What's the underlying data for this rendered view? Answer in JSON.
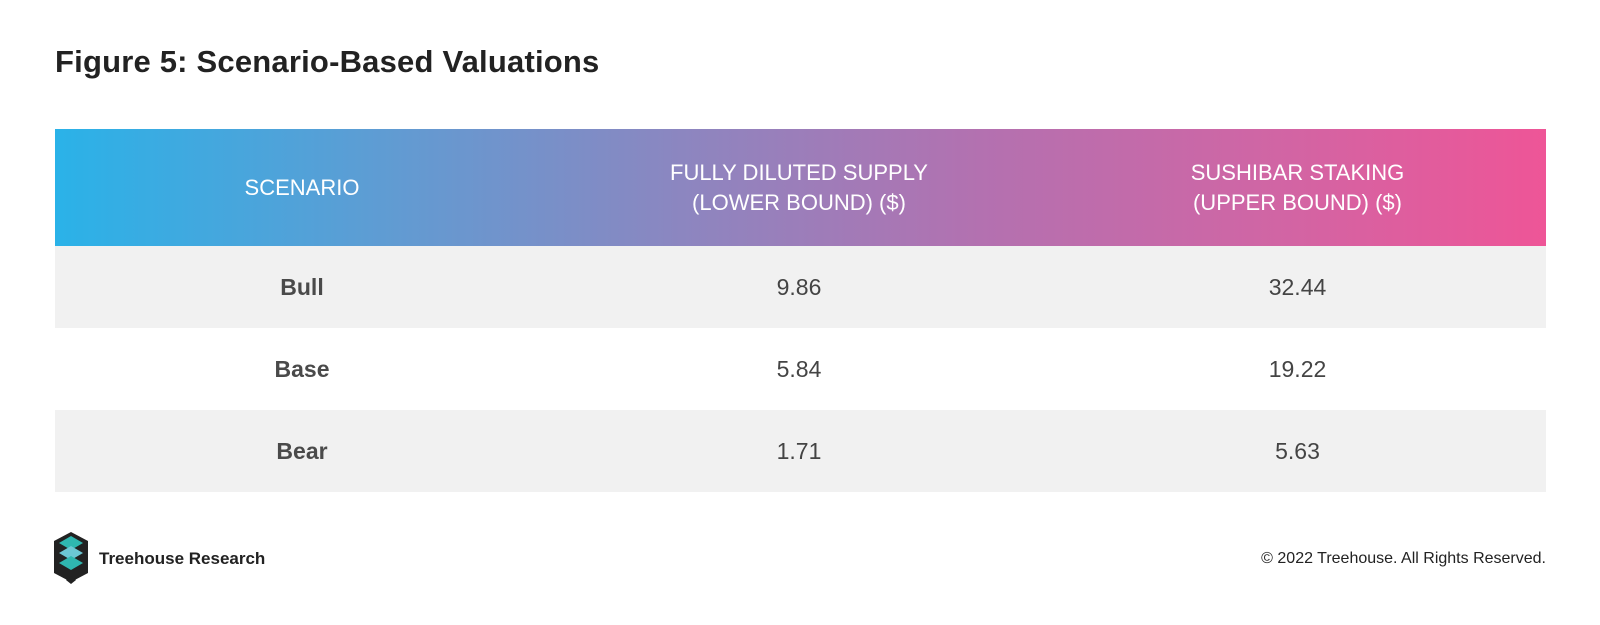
{
  "title": "Figure 5: Scenario-Based Valuations",
  "chart_data": {
    "type": "table",
    "columns": [
      "SCENARIO",
      "FULLY DILUTED SUPPLY\n(LOWER BOUND) ($)",
      "SUSHIBAR STAKING\n(UPPER BOUND) ($)"
    ],
    "rows": [
      [
        "Bull",
        "9.86",
        "32.44"
      ],
      [
        "Base",
        "5.84",
        "19.22"
      ],
      [
        "Bear",
        "1.71",
        "5.63"
      ]
    ],
    "header_gradient": [
      "#2ab2e8",
      "#ee5597"
    ]
  },
  "footer": {
    "brand": "Treehouse Research",
    "copyright": "© 2022 Treehouse. All Rights Reserved.",
    "logo_icon": "treehouse-logo-icon"
  }
}
